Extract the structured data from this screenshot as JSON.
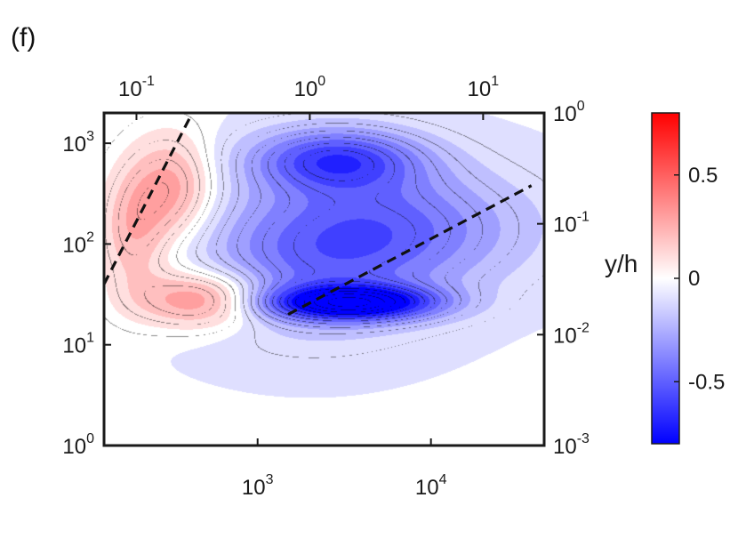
{
  "chart_data": {
    "type": "heatmap",
    "panel_label": "(f)",
    "title": "",
    "xlabel": "",
    "ylabel": "",
    "right_ylabel": "y/h",
    "scale": {
      "x": "log",
      "y": "log"
    },
    "bottom_axis": {
      "range": [
        130,
        45000
      ],
      "ticks": [
        {
          "value": 1000,
          "base": "10",
          "exp": "3"
        },
        {
          "value": 10000,
          "base": "10",
          "exp": "4"
        }
      ]
    },
    "top_axis": {
      "range": [
        0.065,
        22.5
      ],
      "ticks": [
        {
          "value": 0.1,
          "base": "10",
          "exp": "-1"
        },
        {
          "value": 1,
          "base": "10",
          "exp": "0"
        },
        {
          "value": 10,
          "base": "10",
          "exp": "1"
        }
      ]
    },
    "left_axis": {
      "range": [
        1,
        2000
      ],
      "ticks": [
        {
          "value": 1,
          "base": "10",
          "exp": "0"
        },
        {
          "value": 10,
          "base": "10",
          "exp": "1"
        },
        {
          "value": 100,
          "base": "10",
          "exp": "2"
        },
        {
          "value": 1000,
          "base": "10",
          "exp": "3"
        }
      ]
    },
    "right_axis": {
      "range": [
        0.001,
        1
      ],
      "ticks": [
        {
          "value": 0.001,
          "base": "10",
          "exp": "-3"
        },
        {
          "value": 0.01,
          "base": "10",
          "exp": "-2"
        },
        {
          "value": 0.1,
          "base": "10",
          "exp": "-1"
        },
        {
          "value": 1,
          "base": "10",
          "exp": "0"
        }
      ]
    },
    "colorbar": {
      "range": [
        -0.8,
        0.8
      ],
      "ticks": [
        {
          "value": 0.5,
          "label": "0.5"
        },
        {
          "value": 0,
          "label": "0"
        },
        {
          "value": -0.5,
          "label": "-0.5"
        }
      ],
      "colors": {
        "negative": "#0000ff",
        "zero": "#ffffff",
        "positive": "#ff0000"
      }
    },
    "lobes": [
      {
        "sign": "positive",
        "x": 480,
        "y": 28,
        "amp": 0.45,
        "sx": 0.26,
        "sy": 0.2
      },
      {
        "sign": "positive",
        "x": 320,
        "y": 350,
        "amp": 0.34,
        "sx": 0.18,
        "sy": 0.38
      },
      {
        "sign": "positive",
        "x": 190,
        "y": 120,
        "amp": 0.26,
        "sx": 0.14,
        "sy": 0.42
      },
      {
        "sign": "negative",
        "x": 3500,
        "y": 26,
        "amp": 0.85,
        "sx": 0.34,
        "sy": 0.12
      },
      {
        "sign": "negative",
        "x": 2800,
        "y": 700,
        "amp": 0.52,
        "sx": 0.35,
        "sy": 0.22
      },
      {
        "sign": "negative",
        "x": 6000,
        "y": 150,
        "amp": 0.36,
        "sx": 0.55,
        "sy": 0.42
      },
      {
        "sign": "negative",
        "x": 2000,
        "y": 60,
        "amp": 0.3,
        "sx": 0.5,
        "sy": 0.5
      }
    ],
    "background_value": -0.04,
    "blank_band_y": [
      1,
      1.7
    ],
    "dashed_lines": [
      {
        "x": [
          130,
          420
        ],
        "y": [
          40,
          2000
        ]
      },
      {
        "x": [
          1500,
          38000
        ],
        "y": [
          20,
          380
        ]
      }
    ]
  }
}
